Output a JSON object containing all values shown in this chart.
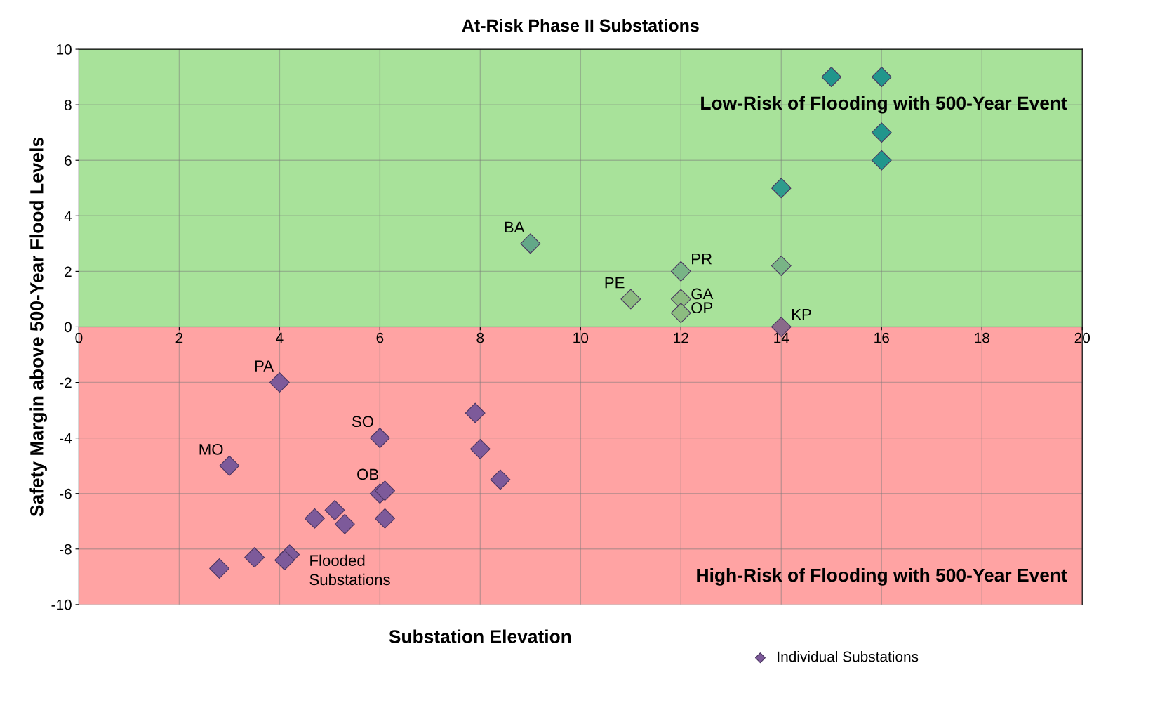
{
  "chart_data": {
    "type": "scatter",
    "title": "At-Risk Phase II Substations",
    "xlabel": "Substation Elevation",
    "ylabel": "Safety Margin above 500-Year Flood Levels",
    "xlim": [
      0,
      20
    ],
    "xticks": [
      0,
      2,
      4,
      6,
      8,
      10,
      12,
      14,
      16,
      18,
      20
    ],
    "ylim": [
      -10,
      10
    ],
    "yticks": [
      -10,
      -8,
      -6,
      -4,
      -2,
      0,
      2,
      4,
      6,
      8,
      10
    ],
    "grid": true,
    "marker": "diamond",
    "legend": "bottom right",
    "bands": [
      {
        "axis": "y",
        "from": 0,
        "to": 10,
        "color": "#a8e29a",
        "label": "Low-Risk of Flooding with 500-Year Event"
      },
      {
        "axis": "y",
        "from": -10,
        "to": 0,
        "color": "#ffa3a3",
        "label": "High-Risk of Flooding with 500-Year Event"
      }
    ],
    "series": [
      {
        "name": "Individual Substations",
        "color": "#7d5a9a",
        "x": [
          15,
          16,
          16,
          16,
          14,
          9,
          14,
          12,
          11,
          12,
          12,
          14,
          4,
          7.9,
          6,
          8,
          3,
          8.4,
          6,
          6.1,
          5.1,
          4.7,
          6.1,
          5.3,
          4.2,
          4.1,
          3.5,
          2.8
        ],
        "values": [
          9,
          9,
          7,
          6,
          5,
          3,
          2.2,
          2,
          1,
          1,
          0.5,
          0,
          -2,
          -3.1,
          -4,
          -4.4,
          -5,
          -5.5,
          -6,
          -5.9,
          -6.6,
          -6.9,
          -6.9,
          -7.1,
          -8.2,
          -8.4,
          -8.3,
          -8.7
        ],
        "colors": [
          "#21968c",
          "#21968c",
          "#21968c",
          "#21968c",
          "#2e9c8c",
          "#63a888",
          "#78b486",
          "#78b486",
          "#8cbc80",
          "#8cbc80",
          "#8cbc80",
          "#8a6a8a",
          "#7d5a9a",
          "#7d5a9a",
          "#7d5a9a",
          "#7d5a9a",
          "#7d5a9a",
          "#7d5a9a",
          "#7d5a9a",
          "#7d5a9a",
          "#7d5a9a",
          "#7d5a9a",
          "#7d5a9a",
          "#7d5a9a",
          "#7d5a9a",
          "#7d5a9a",
          "#7d5a9a",
          "#7d5a9a"
        ]
      }
    ],
    "annotations": [
      {
        "text": "BA",
        "x": 9,
        "y": 3
      },
      {
        "text": "PR",
        "x": 12,
        "y": 2
      },
      {
        "text": "PE",
        "x": 11,
        "y": 1
      },
      {
        "text": "GA",
        "x": 12,
        "y": 1
      },
      {
        "text": "OP",
        "x": 12,
        "y": 0.5
      },
      {
        "text": "KP",
        "x": 14,
        "y": 0
      },
      {
        "text": "PA",
        "x": 4,
        "y": -2
      },
      {
        "text": "SO",
        "x": 6,
        "y": -4
      },
      {
        "text": "MO",
        "x": 3,
        "y": -5
      },
      {
        "text": "OB",
        "x": 6.1,
        "y": -5.9
      },
      {
        "text": "Flooded\nSubstations",
        "x": 4.2,
        "y": -8.2
      }
    ]
  }
}
